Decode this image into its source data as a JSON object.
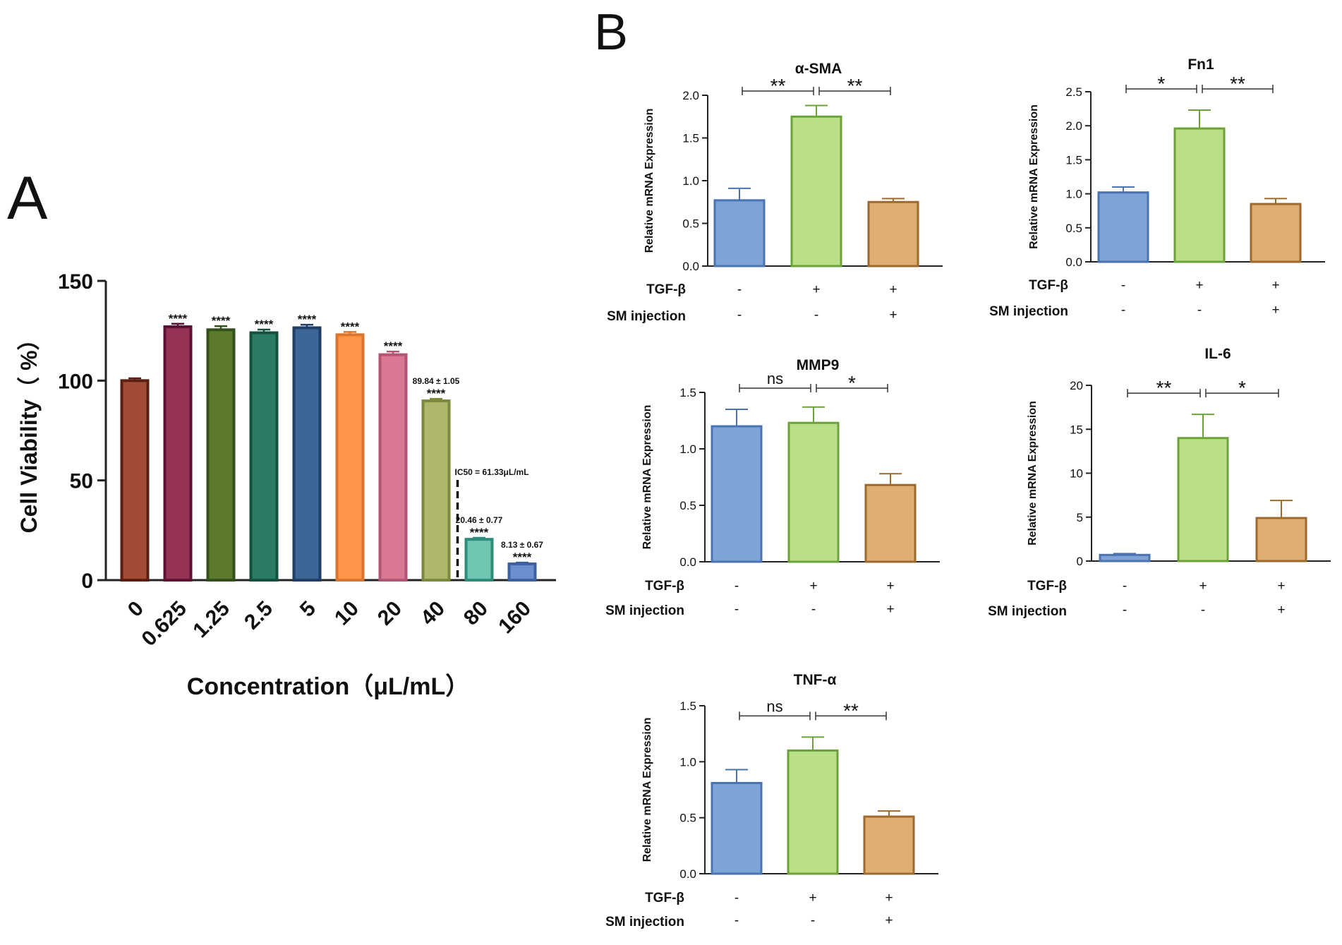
{
  "panel_labels": {
    "a": "A",
    "b": "B"
  },
  "chart_data": [
    {
      "id": "A",
      "type": "bar",
      "xlabel": "Concentration（μL/mL）",
      "ylabel": "Cell Viability（ %）",
      "ylim": [
        0,
        150
      ],
      "yticks": [
        0,
        50,
        100,
        150
      ],
      "categories": [
        "0",
        "0.625",
        "1.25",
        "2.5",
        "5",
        "10",
        "20",
        "40",
        "80",
        "160"
      ],
      "values": [
        100,
        127,
        125.5,
        124,
        126.5,
        123,
        113,
        89.84,
        20.46,
        8.13
      ],
      "errors": [
        1.2,
        1.5,
        1.8,
        1.6,
        1.5,
        1.4,
        1.6,
        1.05,
        0.77,
        0.67
      ],
      "colors": [
        "#A24B37",
        "#963256",
        "#5B7A2C",
        "#2A7B64",
        "#3D6698",
        "#FF9448",
        "#D97893",
        "#AEB76A",
        "#6CC6B2",
        "#6B8FD0"
      ],
      "edges": [
        "#5A1F12",
        "#5E1233",
        "#33501A",
        "#14503E",
        "#1F3E66",
        "#D9762E",
        "#B05573",
        "#7A8A3A",
        "#2E8C7A",
        "#3E5FA0"
      ],
      "stars": [
        "",
        "****",
        "****",
        "****",
        "****",
        "****",
        "****",
        "****",
        "****",
        "****"
      ],
      "value_labels": [
        "",
        "",
        "",
        "",
        "",
        "",
        "",
        "89.84 ± 1.05",
        "20.46 ± 0.77",
        "8.13 ± 0.67"
      ],
      "ic50_label": "IC50 = 61.33μL/mL",
      "ic50_position_between": [
        7,
        8
      ]
    },
    {
      "id": "B1",
      "type": "bar",
      "title": "α-SMA",
      "ylabel": "Relative mRNA Expression",
      "ylim": [
        0,
        2.0
      ],
      "yticks": [
        "0.0",
        "0.5",
        "1.0",
        "1.5",
        "2.0"
      ],
      "values": [
        0.77,
        1.75,
        0.75
      ],
      "errors": [
        0.14,
        0.13,
        0.04
      ],
      "sig": [
        "**",
        "**"
      ],
      "tgf": [
        "-",
        "+",
        "+"
      ],
      "sm": [
        "-",
        "-",
        "+"
      ]
    },
    {
      "id": "B2",
      "type": "bar",
      "title": "Fn1",
      "ylabel": "Relative mRNA Expression",
      "ylim": [
        0,
        2.5
      ],
      "yticks": [
        "0.0",
        "0.5",
        "1.0",
        "1.5",
        "2.0",
        "2.5"
      ],
      "values": [
        1.02,
        1.96,
        0.85
      ],
      "errors": [
        0.08,
        0.27,
        0.08
      ],
      "sig": [
        "*",
        "**"
      ],
      "tgf": [
        "-",
        "+",
        "+"
      ],
      "sm": [
        "-",
        "-",
        "+"
      ]
    },
    {
      "id": "B3",
      "type": "bar",
      "title": "MMP9",
      "ylabel": "Relative mRNA Expression",
      "ylim": [
        0,
        1.5
      ],
      "yticks": [
        "0.0",
        "0.5",
        "1.0",
        "1.5"
      ],
      "values": [
        1.2,
        1.23,
        0.68
      ],
      "errors": [
        0.15,
        0.14,
        0.1
      ],
      "sig": [
        "ns",
        "*"
      ],
      "tgf": [
        "-",
        "+",
        "+"
      ],
      "sm": [
        "-",
        "-",
        "+"
      ]
    },
    {
      "id": "B4",
      "type": "bar",
      "title": "IL-6",
      "ylabel": "Relative mRNA Expression",
      "ylim": [
        0,
        20
      ],
      "yticks": [
        "0",
        "5",
        "10",
        "15",
        "20"
      ],
      "values": [
        0.7,
        14.0,
        4.9
      ],
      "errors": [
        0.15,
        2.7,
        2.0
      ],
      "sig": [
        "**",
        "*"
      ],
      "tgf": [
        "-",
        "+",
        "+"
      ],
      "sm": [
        "-",
        "-",
        "+"
      ]
    },
    {
      "id": "B5",
      "type": "bar",
      "title": "TNF-α",
      "ylabel": "Relative mRNA Expression",
      "ylim": [
        0,
        1.5
      ],
      "yticks": [
        "0.0",
        "0.5",
        "1.0",
        "1.5"
      ],
      "values": [
        0.81,
        1.1,
        0.51
      ],
      "errors": [
        0.12,
        0.12,
        0.05
      ],
      "sig": [
        "ns",
        "**"
      ],
      "tgf": [
        "-",
        "+",
        "+"
      ],
      "sm": [
        "-",
        "-",
        "+"
      ]
    }
  ],
  "row_labels": {
    "tgf": "TGF-β",
    "sm": "SM injection"
  },
  "bar_colors": {
    "fills": [
      "#7EA3D7",
      "#BADF86",
      "#DEAF70"
    ],
    "edges": [
      "#4B73B0",
      "#6BA33A",
      "#9C6A2E"
    ],
    "error_colors": [
      "#4B73B0",
      "#6BA33A",
      "#9C6A2E"
    ]
  }
}
